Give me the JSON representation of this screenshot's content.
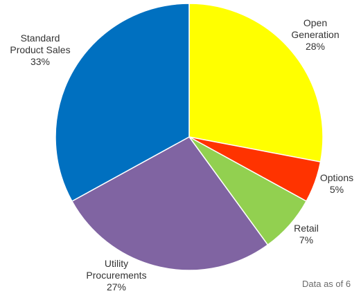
{
  "chart_data": {
    "type": "pie",
    "slices": [
      {
        "label": "Open Generation",
        "label_lines": [
          "Open",
          "Generation"
        ],
        "percent_label": "28%",
        "value": 28,
        "color": "#ffff00"
      },
      {
        "label": "Options",
        "label_lines": [
          "Options"
        ],
        "percent_label": "5%",
        "value": 5,
        "color": "#ff3300"
      },
      {
        "label": "Retail",
        "label_lines": [
          "Retail"
        ],
        "percent_label": "7%",
        "value": 7,
        "color": "#92d050"
      },
      {
        "label": "Utility Procurements",
        "label_lines": [
          "Utility",
          "Procurements"
        ],
        "percent_label": "27%",
        "value": 27,
        "color": "#8064a2"
      },
      {
        "label": "Standard Product Sales",
        "label_lines": [
          "Standard",
          "Product Sales"
        ],
        "percent_label": "33%",
        "value": 33,
        "color": "#0070c0"
      }
    ],
    "start": "12 o'clock",
    "direction": "clockwise"
  },
  "footnote": "Data as of 6"
}
